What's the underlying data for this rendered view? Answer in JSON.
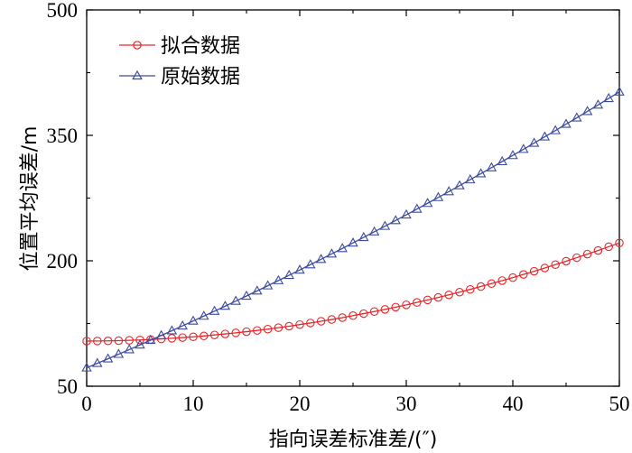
{
  "chart_data": {
    "type": "line",
    "title": "",
    "xlabel": "指向误差标准差/(″)",
    "ylabel": "位置平均误差/m",
    "xlim": [
      0,
      50
    ],
    "ylim": [
      50,
      500
    ],
    "xticks": [
      0,
      10,
      20,
      30,
      40,
      50
    ],
    "yticks": [
      50,
      200,
      350,
      500
    ],
    "grid": false,
    "legend_position": "top-left",
    "series": [
      {
        "name": "拟合数据",
        "marker": "circle",
        "color": "#e8262a",
        "x": [
          0,
          1,
          2,
          3,
          4,
          5,
          6,
          7,
          8,
          9,
          10,
          11,
          12,
          13,
          14,
          15,
          16,
          17,
          18,
          19,
          20,
          21,
          22,
          23,
          24,
          25,
          26,
          27,
          28,
          29,
          30,
          31,
          32,
          33,
          34,
          35,
          36,
          37,
          38,
          39,
          40,
          41,
          42,
          43,
          44,
          45,
          46,
          47,
          48,
          49,
          50
        ],
        "values": [
          104.0,
          104.1,
          104.2,
          104.5,
          104.9,
          105.3,
          105.9,
          106.5,
          107.3,
          108.2,
          109.1,
          110.1,
          111.3,
          112.5,
          113.8,
          115.2,
          116.7,
          118.3,
          120.0,
          121.8,
          123.7,
          125.6,
          127.7,
          129.8,
          132.0,
          134.4,
          136.8,
          139.3,
          141.9,
          144.6,
          147.3,
          150.2,
          153.2,
          156.2,
          159.3,
          162.5,
          165.8,
          169.2,
          172.7,
          176.3,
          179.9,
          183.7,
          187.5,
          191.4,
          195.4,
          199.5,
          203.7,
          208.0,
          212.3,
          216.8,
          221.3
        ]
      },
      {
        "name": "原始数据",
        "marker": "triangle",
        "color": "#3b4a9e",
        "x": [
          0,
          1,
          2,
          3,
          4,
          5,
          6,
          7,
          8,
          9,
          10,
          11,
          12,
          13,
          14,
          15,
          16,
          17,
          18,
          19,
          20,
          21,
          22,
          23,
          24,
          25,
          26,
          27,
          28,
          29,
          30,
          31,
          32,
          33,
          34,
          35,
          36,
          37,
          38,
          39,
          40,
          41,
          42,
          43,
          44,
          45,
          46,
          47,
          48,
          49,
          50
        ],
        "values": [
          72.0,
          77.4,
          82.8,
          88.3,
          93.8,
          99.4,
          105.0,
          110.7,
          116.4,
          122.2,
          128.0,
          133.9,
          139.8,
          145.8,
          151.8,
          157.9,
          164.0,
          170.2,
          176.4,
          182.7,
          189.0,
          195.4,
          201.8,
          208.3,
          214.8,
          221.4,
          228.0,
          234.7,
          241.4,
          248.2,
          255.0,
          261.9,
          268.8,
          275.8,
          282.8,
          289.9,
          297.0,
          304.2,
          311.4,
          318.7,
          326.0,
          333.4,
          340.8,
          348.3,
          355.8,
          363.4,
          371.0,
          378.7,
          386.4,
          394.2,
          402.0
        ]
      }
    ]
  }
}
